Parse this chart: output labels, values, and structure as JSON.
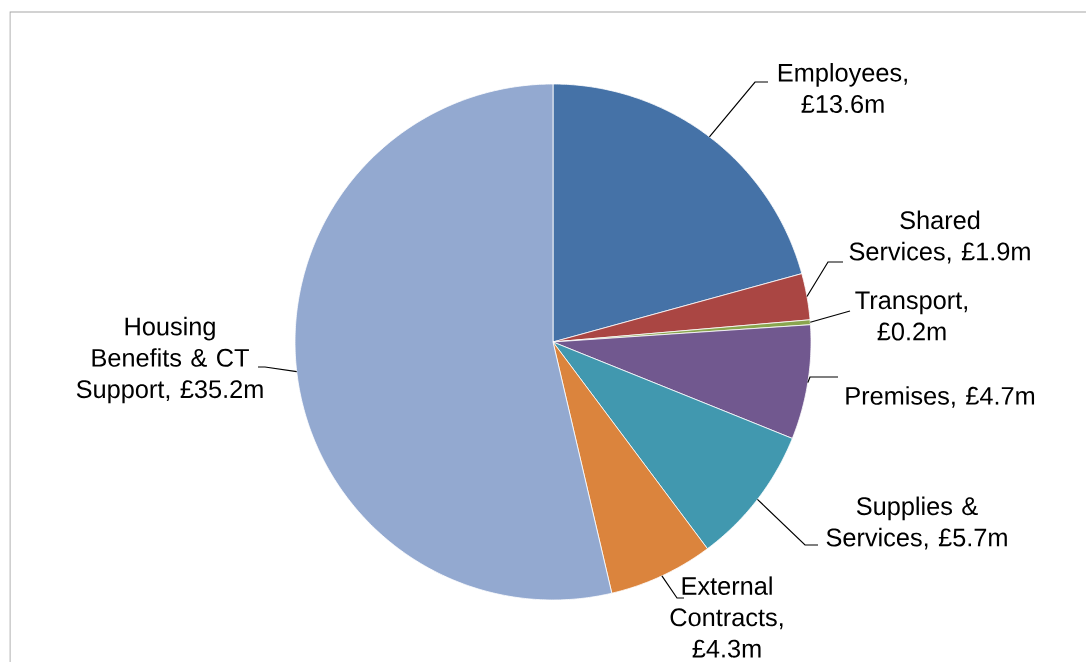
{
  "chart_data": {
    "type": "pie",
    "categories": [
      "Employees, £13.6m",
      "Shared Services, £1.9m",
      "Transport, £0.2m",
      "Premises, £4.7m",
      "Supplies & Services, £5.7m",
      "External Contracts, £4.3m",
      "Housing Benefits & CT Support, £35.2m"
    ],
    "values": [
      13.6,
      1.9,
      0.2,
      4.7,
      5.7,
      4.3,
      35.2
    ],
    "colors": [
      "#4572a7",
      "#aa4643",
      "#89a54e",
      "#71588f",
      "#4198af",
      "#db843d",
      "#93a9d0"
    ]
  }
}
